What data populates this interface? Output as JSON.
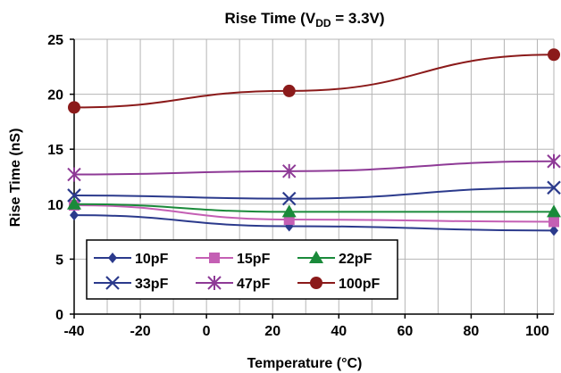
{
  "chart_data": {
    "type": "line",
    "title": {
      "prefix": "Rise Time (V",
      "subscript": "DD",
      "suffix": " = 3.3V)"
    },
    "xlabel": "Temperature (°C)",
    "ylabel": "Rise Time (nS)",
    "xlim": [
      -40,
      105
    ],
    "ylim": [
      0,
      25
    ],
    "x_ticks": [
      "-40",
      "-20",
      "0",
      "20",
      "40",
      "60",
      "80",
      "100"
    ],
    "y_ticks": [
      "0",
      "5",
      "10",
      "15",
      "20",
      "25"
    ],
    "grid": true,
    "legend_position": "bottom-left",
    "x": [
      -40,
      25,
      105
    ],
    "series": [
      {
        "name": "10pF",
        "color": "#2B3A8C",
        "marker": "diamond",
        "values": [
          9.0,
          8.0,
          7.6
        ]
      },
      {
        "name": "15pF",
        "color": "#C45FB4",
        "marker": "square",
        "values": [
          9.9,
          8.6,
          8.4
        ]
      },
      {
        "name": "22pF",
        "color": "#1A8A3A",
        "marker": "triangle",
        "values": [
          10.0,
          9.3,
          9.3
        ]
      },
      {
        "name": "33pF",
        "color": "#2B3A8C",
        "marker": "x",
        "values": [
          10.8,
          10.5,
          11.5
        ]
      },
      {
        "name": "47pF",
        "color": "#8E3A96",
        "marker": "star",
        "values": [
          12.7,
          13.0,
          13.9
        ]
      },
      {
        "name": "100pF",
        "color": "#8B1A1A",
        "marker": "circle",
        "values": [
          18.8,
          20.3,
          23.6
        ]
      }
    ]
  }
}
